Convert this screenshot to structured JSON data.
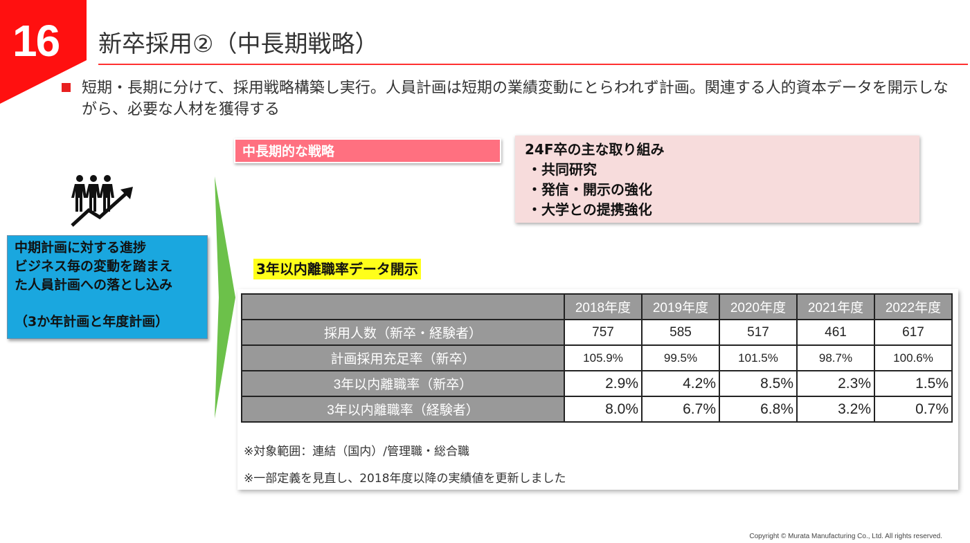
{
  "page_number": "16",
  "title": "新卒採用②（中長期戦略）",
  "bullet": "短期・長期に分けて、採用戦略構築し実行。人員計画は短期の業績変動にとらわれず計画。関連する人的資本データを開示しながら、必要な人材を獲得する",
  "left_box": {
    "lines": [
      "中期計画に対する進捗",
      "ビジネス毎の変動を踏まえ",
      "た人員計画への落とし込み"
    ],
    "note": "（3か年計画と年度計画）"
  },
  "strategy_label": "中長期的な戦略",
  "initiatives": {
    "title": "24F卒の主な取り組み",
    "items": [
      "・共同研究",
      "・発信・開示の強化",
      "・大学との提携強化"
    ]
  },
  "table_heading": "3年以内離職率データ開示",
  "table": {
    "years": [
      "2018年度",
      "2019年度",
      "2020年度",
      "2021年度",
      "2022年度"
    ],
    "rows": [
      {
        "label": "採用人数（新卒・経験者）",
        "values": [
          "757",
          "585",
          "517",
          "461",
          "617"
        ]
      },
      {
        "label": "計画採用充足率（新卒）",
        "values": [
          "105.9%",
          "99.5%",
          "101.5%",
          "98.7%",
          "100.6%"
        ]
      },
      {
        "label": "3年以内離職率（新卒）",
        "values": [
          "2.9%",
          "4.2%",
          "8.5%",
          "2.3%",
          "1.5%"
        ]
      },
      {
        "label": "3年以内離職率（経験者）",
        "values": [
          "8.0%",
          "6.7%",
          "6.8%",
          "3.2%",
          "0.7%"
        ]
      }
    ],
    "notes": [
      "※対象範囲：連結（国内）/管理職・総合職",
      "※一部定義を見直し、2018年度以降の実績値を更新しました"
    ]
  },
  "copyright": "Copyright © Murata Manufacturing Co., Ltd. All rights reserved.",
  "colors": {
    "accent_red": "#ff1010",
    "blue_box": "#1aa7df",
    "pink_label": "#ff7080",
    "pink_panel": "#f7dcdc",
    "highlight_yellow": "#ffff1a",
    "arrow_green": "#6cc14a"
  }
}
